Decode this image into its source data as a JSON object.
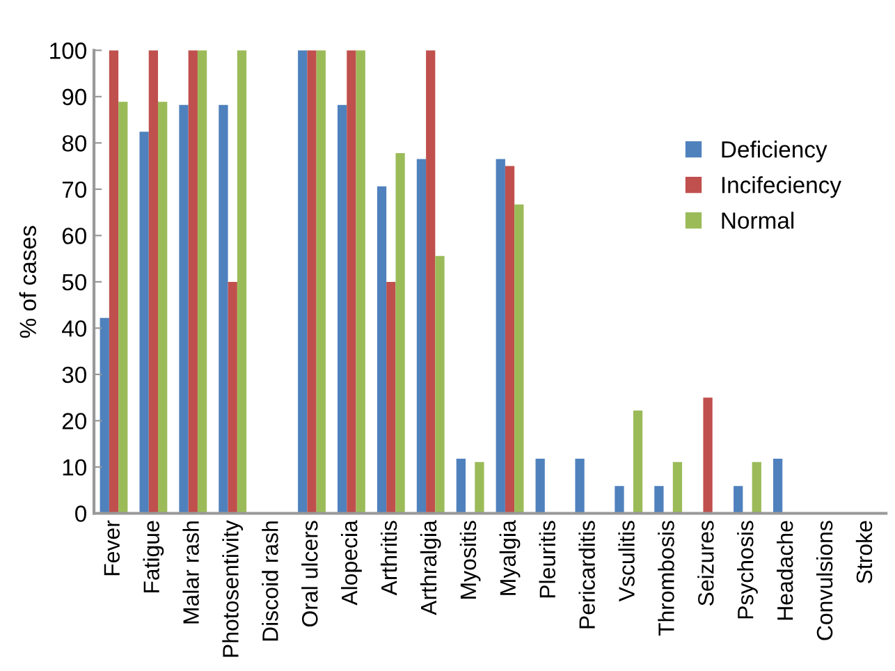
{
  "chart_data": {
    "type": "bar",
    "ylabel": "% of cases",
    "categories": [
      "Fever",
      "Fatigue",
      "Malar rash",
      "Photosentivity",
      "Discoid rash",
      "Oral ulcers",
      "Alopecia",
      "Arthritis",
      "Arthralgia",
      "Myositis",
      "Myalgia",
      "Pleuritis",
      "Pericarditis",
      "Vsculitis",
      "Thrombosis",
      "Seizures",
      "Psychosis",
      "Headache",
      "Convulsions",
      "Stroke"
    ],
    "series": [
      {
        "name": "Deficiency",
        "color": "#4f81bd",
        "values": [
          42.2,
          82.4,
          88.2,
          88.2,
          0,
          100,
          88.2,
          70.6,
          76.5,
          11.8,
          76.5,
          11.8,
          11.8,
          5.9,
          5.9,
          0,
          5.9,
          11.8,
          0,
          0
        ]
      },
      {
        "name": "Incifeciency",
        "color": "#c0504d",
        "values": [
          100,
          100,
          100,
          50,
          0,
          100,
          100,
          50,
          100,
          0,
          75,
          0,
          0,
          0,
          0,
          25,
          0,
          0,
          0,
          0
        ]
      },
      {
        "name": "Normal",
        "color": "#9bbb59",
        "values": [
          88.9,
          88.9,
          100,
          100,
          0,
          100,
          100,
          77.8,
          55.6,
          11.1,
          66.7,
          0,
          0,
          22.2,
          11.1,
          0,
          11.1,
          0,
          0,
          0
        ]
      }
    ],
    "ylim": [
      0,
      100
    ],
    "yticks": [
      0,
      10,
      20,
      30,
      40,
      50,
      60,
      70,
      80,
      90,
      100
    ],
    "grid": false,
    "legend": "top right"
  }
}
